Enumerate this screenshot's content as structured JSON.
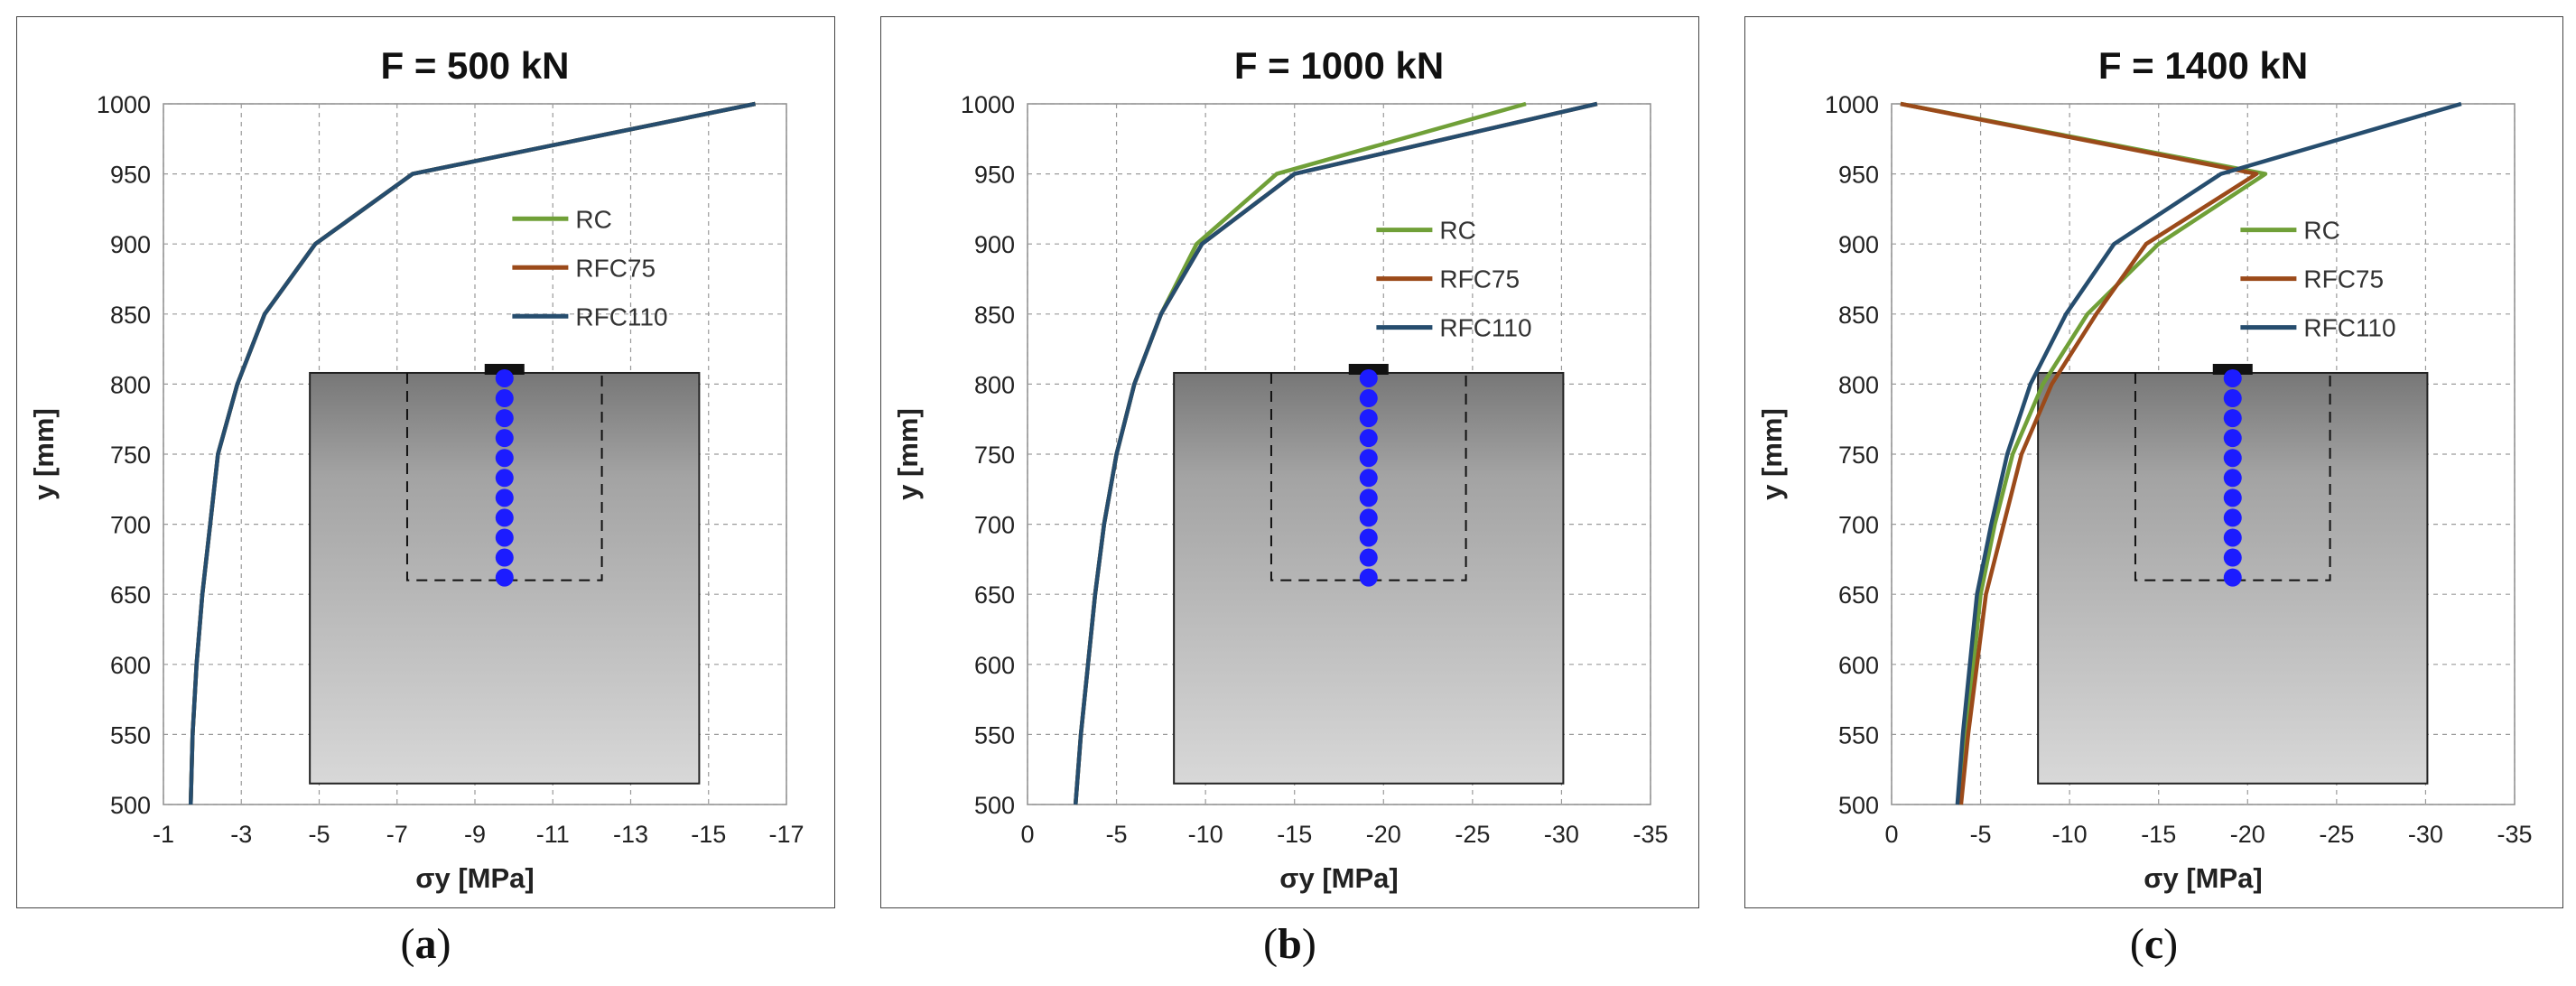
{
  "figure": {
    "captions": [
      "a",
      "b",
      "c"
    ]
  },
  "legend_labels": [
    "RC",
    "RFC75",
    "RFC110"
  ],
  "colors": {
    "RC": "#70a038",
    "RFC75": "#9b4a1a",
    "RFC110": "#264d6e",
    "probe_points": "#1c1cff"
  },
  "chart_data": [
    {
      "type": "line",
      "title": "F = 500 kN",
      "xlabel": "σy [MPa]",
      "ylabel": "y [mm]",
      "xlim": [
        -1,
        -17
      ],
      "ylim": [
        500,
        1000
      ],
      "xticks": [
        -1,
        -3,
        -5,
        -7,
        -9,
        -11,
        -13,
        -15,
        -17
      ],
      "yticks": [
        500,
        550,
        600,
        650,
        700,
        750,
        800,
        850,
        900,
        950,
        1000
      ],
      "grid": true,
      "legend": "right",
      "y": [
        500,
        550,
        600,
        650,
        700,
        750,
        800,
        850,
        900,
        950,
        1000
      ],
      "series": [
        {
          "name": "RC",
          "values": [
            -1.7,
            -1.75,
            -1.85,
            -2.0,
            -2.2,
            -2.4,
            -2.9,
            -3.6,
            -4.9,
            -7.4,
            -16.2
          ]
        },
        {
          "name": "RFC75",
          "values": [
            -1.7,
            -1.75,
            -1.85,
            -2.0,
            -2.2,
            -2.4,
            -2.9,
            -3.6,
            -4.9,
            -7.4,
            -16.2
          ]
        },
        {
          "name": "RFC110",
          "values": [
            -1.7,
            -1.75,
            -1.85,
            -2.0,
            -2.2,
            -2.4,
            -2.9,
            -3.6,
            -4.9,
            -7.4,
            -16.2
          ]
        }
      ]
    },
    {
      "type": "line",
      "title": "F = 1000 kN",
      "xlabel": "σy [MPa]",
      "ylabel": "y [mm]",
      "xlim": [
        0,
        -35
      ],
      "ylim": [
        500,
        1000
      ],
      "xticks": [
        0,
        -5,
        -10,
        -15,
        -20,
        -25,
        -30,
        -35
      ],
      "yticks": [
        500,
        550,
        600,
        650,
        700,
        750,
        800,
        850,
        900,
        950,
        1000
      ],
      "grid": true,
      "legend": "right",
      "y": [
        500,
        550,
        600,
        650,
        700,
        750,
        800,
        850,
        900,
        950,
        1000
      ],
      "series": [
        {
          "name": "RC",
          "values": [
            -2.7,
            -3.0,
            -3.4,
            -3.8,
            -4.3,
            -5.0,
            -6.0,
            -7.5,
            -9.5,
            -14.0,
            -28.0
          ]
        },
        {
          "name": "RFC75",
          "values": [
            -2.7,
            -3.0,
            -3.4,
            -3.8,
            -4.3,
            -5.0,
            -6.0,
            -7.5,
            -9.8,
            -15.0,
            -32.0
          ]
        },
        {
          "name": "RFC110",
          "values": [
            -2.7,
            -3.0,
            -3.4,
            -3.8,
            -4.3,
            -5.0,
            -6.0,
            -7.5,
            -9.8,
            -15.0,
            -32.0
          ]
        }
      ]
    },
    {
      "type": "line",
      "title": "F = 1400 kN",
      "xlabel": "σy [MPa]",
      "ylabel": "y [mm]",
      "xlim": [
        0,
        -35
      ],
      "ylim": [
        500,
        1000
      ],
      "xticks": [
        0,
        -5,
        -10,
        -15,
        -20,
        -25,
        -30,
        -35
      ],
      "yticks": [
        500,
        550,
        600,
        650,
        700,
        750,
        800,
        850,
        900,
        950,
        1000
      ],
      "grid": true,
      "legend": "right",
      "y": [
        500,
        550,
        600,
        650,
        700,
        750,
        800,
        850,
        900,
        950,
        1000
      ],
      "series": [
        {
          "name": "RC",
          "values": [
            -3.8,
            -4.2,
            -4.6,
            -5.0,
            -5.8,
            -6.8,
            -8.5,
            -11.0,
            -15.0,
            -21.0,
            -0.5
          ]
        },
        {
          "name": "RFC75",
          "values": [
            -3.9,
            -4.3,
            -4.8,
            -5.3,
            -6.3,
            -7.3,
            -9.0,
            -11.5,
            -14.3,
            -20.5,
            -0.5
          ]
        },
        {
          "name": "RFC110",
          "values": [
            -3.7,
            -4.0,
            -4.4,
            -4.8,
            -5.6,
            -6.5,
            -7.8,
            -9.8,
            -12.5,
            -18.5,
            -32.0
          ]
        }
      ]
    }
  ]
}
